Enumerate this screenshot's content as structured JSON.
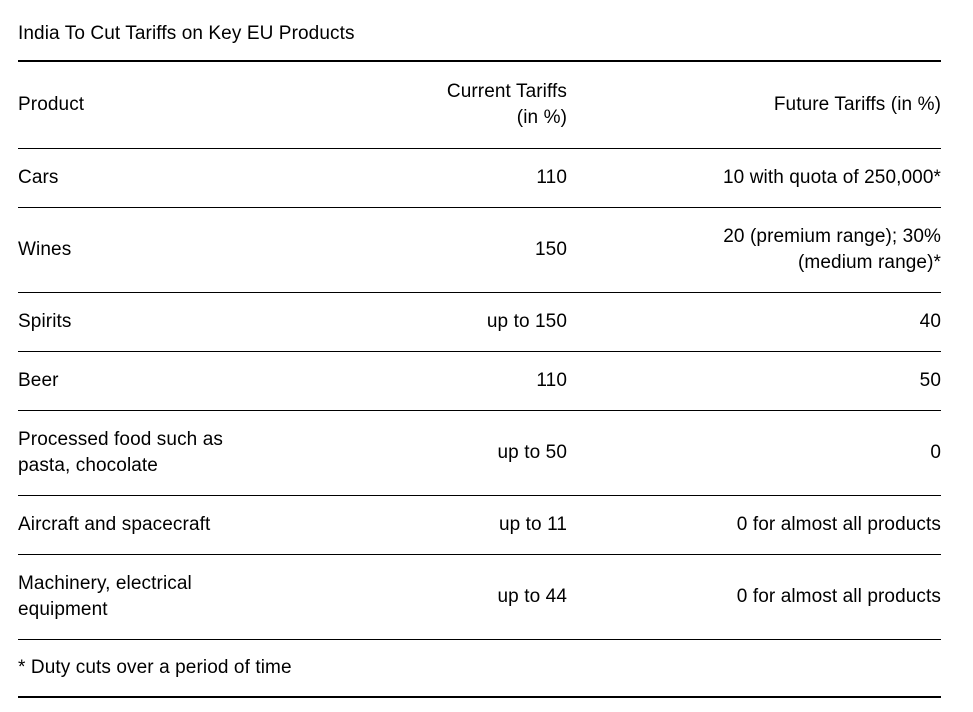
{
  "chart_data": {
    "type": "table",
    "title": "India To Cut Tariffs on Key EU Products",
    "columns": [
      "Product",
      "Current Tariffs\n(in %)",
      "Future Tariffs (in %)"
    ],
    "rows": [
      [
        "Cars",
        "110",
        "10 with quota of 250,000*"
      ],
      [
        "Wines",
        "150",
        "20 (premium range); 30%\n(medium range)*"
      ],
      [
        "Spirits",
        "up to 150",
        "40"
      ],
      [
        "Beer",
        "110",
        "50"
      ],
      [
        "Processed food such as\npasta, chocolate",
        "up to 50",
        "0"
      ],
      [
        "Aircraft and spacecraft",
        "up to 11",
        "0 for almost all products"
      ],
      [
        "Machinery, electrical\nequipment",
        "up to 44",
        "0 for almost all products"
      ]
    ],
    "footnote": "* Duty cuts over a period of time",
    "layout": {
      "column_align": [
        "left",
        "right",
        "right"
      ],
      "grid": "horizontal-rules-only",
      "legend": "none"
    },
    "colors": {
      "text": "#000000",
      "rule": "#000000",
      "background": "#ffffff"
    }
  }
}
